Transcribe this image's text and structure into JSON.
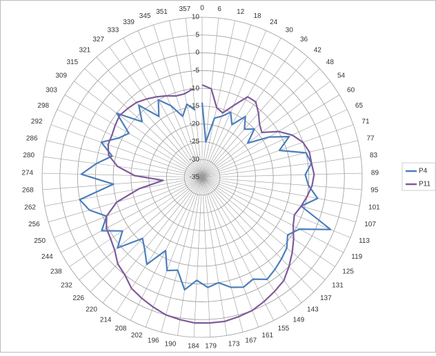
{
  "chart_data": {
    "type": "radar",
    "categories": [
      "0",
      "6",
      "12",
      "18",
      "24",
      "30",
      "36",
      "42",
      "48",
      "54",
      "60",
      "65",
      "71",
      "77",
      "83",
      "89",
      "95",
      "101",
      "107",
      "113",
      "119",
      "125",
      "131",
      "137",
      "143",
      "149",
      "155",
      "161",
      "167",
      "173",
      "179",
      "184",
      "190",
      "196",
      "202",
      "208",
      "214",
      "220",
      "226",
      "232",
      "238",
      "244",
      "250",
      "256",
      "262",
      "268",
      "274",
      "280",
      "286",
      "292",
      "298",
      "303",
      "309",
      "315",
      "321",
      "327",
      "333",
      "339",
      "345",
      "351",
      "357"
    ],
    "series": [
      {
        "name": "P4",
        "color": "#4a7ebb",
        "values": [
          -14,
          -25,
          -18,
          -17,
          -15,
          -18,
          -14,
          -17,
          -15,
          -19,
          -13,
          -8,
          -12,
          -5,
          -4,
          -6,
          -5,
          -2,
          -6,
          4,
          -4,
          -6,
          -4,
          -3,
          -2,
          -1,
          -3,
          -2,
          -3,
          -5,
          -4,
          -6,
          -3,
          -8,
          -7,
          -12,
          -6,
          -9,
          -11,
          -4,
          -8,
          -3,
          -6,
          -2,
          0,
          -10,
          -1,
          -5,
          -9,
          -5,
          -9,
          -11,
          -5,
          -12,
          -8,
          -14,
          -10,
          -13,
          -17,
          -14,
          -16
        ]
      },
      {
        "name": "P11",
        "color": "#7e5a9b",
        "values": [
          -9,
          -10,
          -15,
          -16,
          -13,
          -9,
          -9,
          -11,
          -13,
          -14,
          -10,
          -7,
          -5,
          -4,
          -4,
          -3.5,
          -4,
          -5,
          -6,
          -7,
          -6,
          -4,
          -2,
          0,
          2,
          3,
          4,
          5,
          5.5,
          6,
          6,
          6,
          5.5,
          5,
          4,
          3,
          2,
          0,
          -1,
          -3,
          -4,
          -4.5,
          -6,
          -10,
          -17,
          -24,
          -16,
          -11,
          -8,
          -7,
          -7,
          -6.5,
          -6,
          -6.5,
          -7,
          -8,
          -9,
          -10,
          -11,
          -11,
          -10
        ]
      }
    ],
    "ylim": [
      -35,
      10
    ],
    "yticks": [
      -35,
      -30,
      -25,
      -20,
      -15,
      -10,
      -5,
      0,
      5,
      10
    ],
    "grid": true,
    "legend": "right"
  }
}
